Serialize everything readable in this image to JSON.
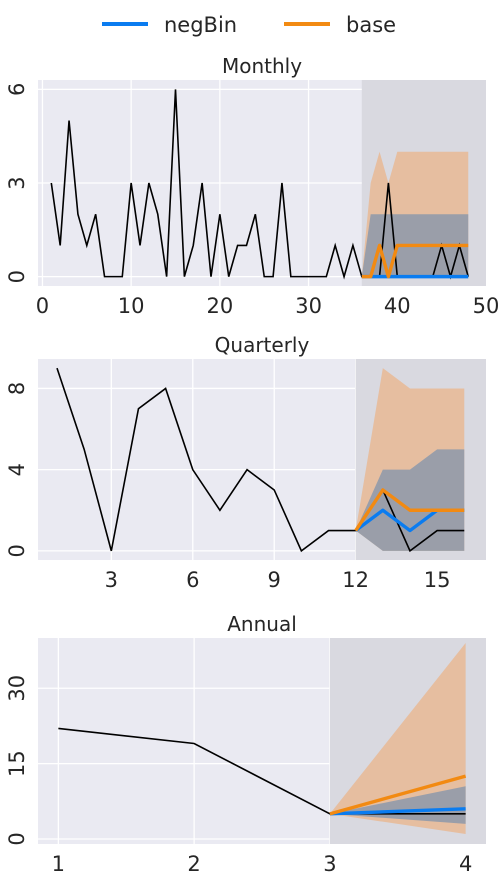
{
  "legend": {
    "position": "top-center",
    "items": [
      {
        "label": "negBin",
        "color": "#0a7cf0"
      },
      {
        "label": "base",
        "color": "#f28a12"
      }
    ]
  },
  "colors": {
    "history": "#000000",
    "panel_bg": "#eaeaf2",
    "forecast_region": "#d9d9e0",
    "negbin_band": "#8c99aa",
    "base_band": "#e8b894"
  },
  "chart_data": [
    {
      "type": "line",
      "title": "Monthly",
      "grid": true,
      "xlim": [
        -0.5,
        50
      ],
      "ylim": [
        -0.3,
        6.3
      ],
      "xticks": [
        0,
        10,
        20,
        30,
        40,
        50
      ],
      "yticks": [
        0,
        3,
        6
      ],
      "forecast_start": 36,
      "history": {
        "x": [
          1,
          2,
          3,
          4,
          5,
          6,
          7,
          8,
          9,
          10,
          11,
          12,
          13,
          14,
          15,
          16,
          17,
          18,
          19,
          20,
          21,
          22,
          23,
          24,
          25,
          26,
          27,
          28,
          29,
          30,
          31,
          32,
          33,
          34,
          35,
          36,
          37,
          38,
          39,
          40,
          41,
          42,
          43,
          44,
          45,
          46,
          47,
          48
        ],
        "y": [
          3,
          1,
          5,
          2,
          1,
          2,
          0,
          0,
          0,
          3,
          1,
          3,
          2,
          0,
          6,
          0,
          1,
          3,
          0,
          2,
          0,
          1,
          1,
          2,
          0,
          0,
          3,
          0,
          0,
          0,
          0,
          0,
          1,
          0,
          1,
          0,
          0,
          0,
          3,
          0,
          0,
          0,
          0,
          0,
          1,
          0,
          1,
          0
        ]
      },
      "series": [
        {
          "name": "negBin",
          "x": [
            36,
            37,
            38,
            39,
            40,
            41,
            42,
            43,
            44,
            45,
            46,
            47,
            48
          ],
          "y": [
            0,
            0,
            0,
            0,
            0,
            0,
            0,
            0,
            0,
            0,
            0,
            0,
            0
          ]
        },
        {
          "name": "base",
          "x": [
            36,
            37,
            38,
            39,
            40,
            41,
            42,
            43,
            44,
            45,
            46,
            47,
            48
          ],
          "y": [
            0,
            0,
            1,
            0,
            1,
            1,
            1,
            1,
            1,
            1,
            1,
            1,
            1
          ]
        }
      ],
      "bands": [
        {
          "series": "base",
          "x": [
            36,
            37,
            38,
            39,
            40,
            41,
            42,
            43,
            44,
            45,
            46,
            47,
            48
          ],
          "lower": [
            0,
            0,
            0,
            0,
            0,
            0,
            0,
            0,
            0,
            0,
            0,
            0,
            0
          ],
          "upper": [
            0,
            3,
            4,
            3,
            4,
            4,
            4,
            4,
            4,
            4,
            4,
            4,
            4
          ]
        },
        {
          "series": "negBin",
          "x": [
            36,
            37,
            38,
            39,
            40,
            41,
            42,
            43,
            44,
            45,
            46,
            47,
            48
          ],
          "lower": [
            0,
            0,
            0,
            0,
            0,
            0,
            0,
            0,
            0,
            0,
            0,
            0,
            0
          ],
          "upper": [
            0,
            2,
            2,
            2,
            2,
            2,
            2,
            2,
            2,
            2,
            2,
            2,
            2
          ]
        }
      ]
    },
    {
      "type": "line",
      "title": "Quarterly",
      "grid": true,
      "xlim": [
        0.3,
        16.8
      ],
      "ylim": [
        -0.45,
        9.45
      ],
      "xticks": [
        3,
        6,
        9,
        12,
        15
      ],
      "yticks": [
        0,
        4,
        8
      ],
      "forecast_start": 12,
      "history": {
        "x": [
          1,
          2,
          3,
          4,
          5,
          6,
          7,
          8,
          9,
          10,
          11,
          12,
          13,
          14,
          15,
          16
        ],
        "y": [
          9,
          5,
          0,
          7,
          8,
          4,
          2,
          4,
          3,
          0,
          1,
          1,
          3,
          0,
          1,
          1
        ]
      },
      "series": [
        {
          "name": "negBin",
          "x": [
            12,
            13,
            14,
            15,
            16
          ],
          "y": [
            1,
            2,
            1,
            2,
            2
          ]
        },
        {
          "name": "base",
          "x": [
            12,
            13,
            14,
            15,
            16
          ],
          "y": [
            1,
            3,
            2,
            2,
            2
          ]
        }
      ],
      "bands": [
        {
          "series": "base",
          "x": [
            12,
            13,
            14,
            15,
            16
          ],
          "lower": [
            1,
            0,
            0,
            0,
            0
          ],
          "upper": [
            1,
            9,
            8,
            8,
            8
          ]
        },
        {
          "series": "negBin",
          "x": [
            12,
            13,
            14,
            15,
            16
          ],
          "lower": [
            1,
            0,
            0,
            0,
            0
          ],
          "upper": [
            1,
            4,
            4,
            5,
            5
          ]
        }
      ]
    },
    {
      "type": "line",
      "title": "Annual",
      "grid": true,
      "xlim": [
        0.85,
        4.15
      ],
      "ylim": [
        -1,
        40
      ],
      "xticks": [
        1,
        2,
        3,
        4
      ],
      "yticks": [
        0,
        15,
        30
      ],
      "forecast_start": 3,
      "history": {
        "x": [
          1,
          2,
          3,
          4
        ],
        "y": [
          22,
          19,
          5,
          5
        ]
      },
      "series": [
        {
          "name": "negBin",
          "x": [
            3,
            4
          ],
          "y": [
            5,
            6
          ]
        },
        {
          "name": "base",
          "x": [
            3,
            4
          ],
          "y": [
            5,
            12.5
          ]
        }
      ],
      "bands": [
        {
          "series": "base",
          "x": [
            3,
            4
          ],
          "lower": [
            5,
            1
          ],
          "upper": [
            5,
            39
          ]
        },
        {
          "series": "negBin",
          "x": [
            3,
            4
          ],
          "lower": [
            5,
            3
          ],
          "upper": [
            5,
            10.5
          ]
        }
      ]
    }
  ]
}
